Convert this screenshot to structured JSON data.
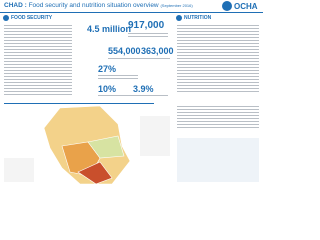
{
  "header": {
    "country": "CHAD :",
    "title": "Food security and nutrition situation overview",
    "date": "(September 2016)",
    "logo": "OCHA"
  },
  "food_security": {
    "heading": "FOOD SECURITY",
    "figures": [
      "4.5 million",
      "917,000",
      "554,000",
      "363,000",
      "27%",
      "10%",
      "3.9%"
    ]
  },
  "nutrition": {
    "heading": "NUTRITION"
  }
}
